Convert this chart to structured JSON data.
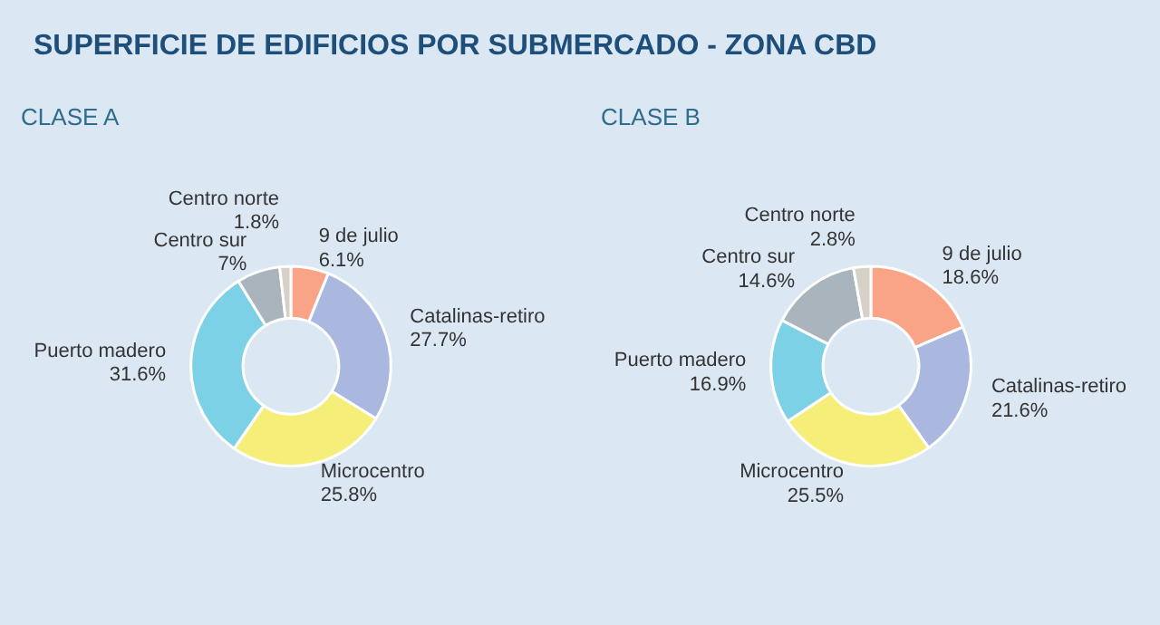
{
  "chart_data": [
    {
      "type": "donut",
      "title": "SUPERFICIE DE EDIFICIOS POR SUBMERCADO - ZONA CBD",
      "subtitle": "CLASE A",
      "categories": [
        "9 de julio",
        "Catalinas-retiro",
        "Microcentro",
        "Puerto madero",
        "Centro sur",
        "Centro norte"
      ],
      "values": [
        6.1,
        27.7,
        25.8,
        31.6,
        7,
        1.8
      ],
      "colors": [
        "#f9a487",
        "#aab8e0",
        "#f5ef7a",
        "#7dd1e6",
        "#a9b4bd",
        "#d6d0c6"
      ],
      "value_labels": [
        "6.1%",
        "27.7%",
        "25.8%",
        "31.6%",
        "7%",
        "1.8%"
      ]
    },
    {
      "type": "donut",
      "subtitle": "CLASE B",
      "categories": [
        "9 de julio",
        "Catalinas-retiro",
        "Microcentro",
        "Puerto madero",
        "Centro sur",
        "Centro norte"
      ],
      "values": [
        18.6,
        21.6,
        25.5,
        16.9,
        14.6,
        2.8
      ],
      "colors": [
        "#f9a487",
        "#aab8e0",
        "#f5ef7a",
        "#7dd1e6",
        "#a9b4bd",
        "#d6d0c6"
      ],
      "value_labels": [
        "18.6%",
        "21.6%",
        "25.5%",
        "16.9%",
        "14.6%",
        "2.8%"
      ]
    }
  ]
}
